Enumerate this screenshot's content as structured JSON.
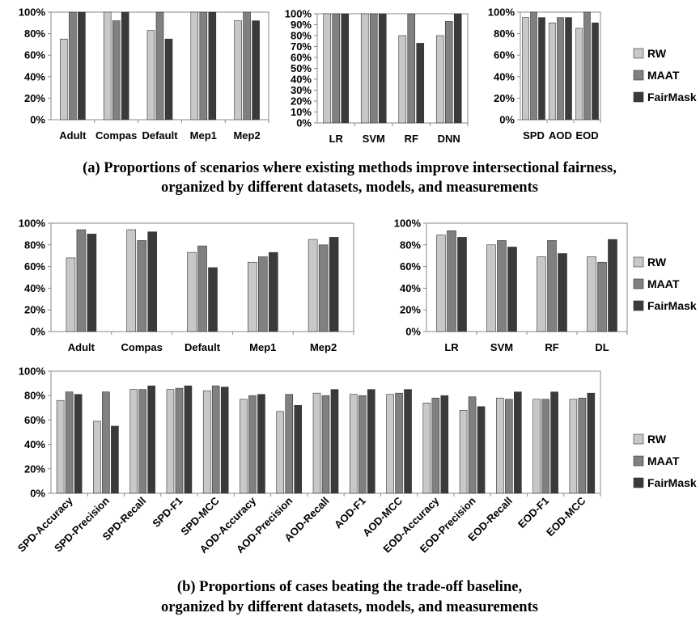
{
  "colors": {
    "RW": "#c8c8c8",
    "MAAT": "#808080",
    "FairMask": "#3a3a3a"
  },
  "legend": [
    "RW",
    "MAAT",
    "FairMask"
  ],
  "captions": {
    "a_line1": "(a) Proportions of scenarios where existing methods improve intersectional fairness,",
    "a_line2": "organized by different datasets, models, and measurements",
    "b_line1": "(b) Proportions of cases beating the trade-off baseline,",
    "b_line2": "organized by different datasets, models, and measurements"
  },
  "chart_data": [
    {
      "id": "a_datasets",
      "type": "bar",
      "categories": [
        "Adult",
        "Compas",
        "Default",
        "Mep1",
        "Mep2"
      ],
      "series": [
        {
          "name": "RW",
          "values": [
            75,
            100,
            83,
            100,
            92
          ]
        },
        {
          "name": "MAAT",
          "values": [
            100,
            92,
            100,
            100,
            100
          ]
        },
        {
          "name": "FairMask",
          "values": [
            100,
            100,
            75,
            100,
            92
          ]
        }
      ],
      "yticks": [
        "0%",
        "20%",
        "40%",
        "60%",
        "80%",
        "100%"
      ],
      "ylim": [
        0,
        100
      ]
    },
    {
      "id": "a_models",
      "type": "bar",
      "categories": [
        "LR",
        "SVM",
        "RF",
        "DNN"
      ],
      "series": [
        {
          "name": "RW",
          "values": [
            100,
            100,
            80,
            80
          ]
        },
        {
          "name": "MAAT",
          "values": [
            100,
            100,
            100,
            93
          ]
        },
        {
          "name": "FairMask",
          "values": [
            100,
            100,
            73,
            100
          ]
        }
      ],
      "yticks": [
        "0%",
        "10%",
        "20%",
        "30%",
        "40%",
        "50%",
        "60%",
        "70%",
        "80%",
        "90%",
        "100%"
      ],
      "ylim": [
        0,
        100
      ]
    },
    {
      "id": "a_measurements",
      "type": "bar",
      "categories": [
        "SPD",
        "AOD",
        "EOD"
      ],
      "series": [
        {
          "name": "RW",
          "values": [
            95,
            90,
            85
          ]
        },
        {
          "name": "MAAT",
          "values": [
            100,
            95,
            100
          ]
        },
        {
          "name": "FairMask",
          "values": [
            95,
            95,
            90
          ]
        }
      ],
      "yticks": [
        "0%",
        "20%",
        "40%",
        "60%",
        "80%",
        "100%"
      ],
      "ylim": [
        0,
        100
      ]
    },
    {
      "id": "b_datasets",
      "type": "bar",
      "categories": [
        "Adult",
        "Compas",
        "Default",
        "Mep1",
        "Mep2"
      ],
      "series": [
        {
          "name": "RW",
          "values": [
            68,
            94,
            73,
            64,
            85
          ]
        },
        {
          "name": "MAAT",
          "values": [
            94,
            84,
            79,
            69,
            80
          ]
        },
        {
          "name": "FairMask",
          "values": [
            90,
            92,
            59,
            73,
            87
          ]
        }
      ],
      "yticks": [
        "0%",
        "20%",
        "40%",
        "60%",
        "80%",
        "100%"
      ],
      "ylim": [
        0,
        100
      ]
    },
    {
      "id": "b_models",
      "type": "bar",
      "categories": [
        "LR",
        "SVM",
        "RF",
        "DL"
      ],
      "series": [
        {
          "name": "RW",
          "values": [
            89,
            80,
            69,
            69
          ]
        },
        {
          "name": "MAAT",
          "values": [
            93,
            84,
            84,
            64
          ]
        },
        {
          "name": "FairMask",
          "values": [
            87,
            78,
            72,
            85
          ]
        }
      ],
      "yticks": [
        "0%",
        "20%",
        "40%",
        "60%",
        "80%",
        "100%"
      ],
      "ylim": [
        0,
        100
      ]
    },
    {
      "id": "b_measurements",
      "type": "bar",
      "categories": [
        "SPD-Accuracy",
        "SPD-Precision",
        "SPD-Recall",
        "SPD-F1",
        "SPD-MCC",
        "AOD-Accuracy",
        "AOD-Precision",
        "AOD-Recall",
        "AOD-F1",
        "AOD-MCC",
        "EOD-Accuracy",
        "EOD-Precision",
        "EOD-Recall",
        "EOD-F1",
        "EOD-MCC"
      ],
      "series": [
        {
          "name": "RW",
          "values": [
            76,
            59,
            85,
            85,
            84,
            77,
            67,
            82,
            81,
            81,
            74,
            68,
            78,
            77,
            77
          ]
        },
        {
          "name": "MAAT",
          "values": [
            83,
            83,
            85,
            86,
            88,
            80,
            81,
            80,
            80,
            82,
            78,
            79,
            77,
            77,
            78
          ]
        },
        {
          "name": "FairMask",
          "values": [
            81,
            55,
            88,
            88,
            87,
            81,
            72,
            85,
            85,
            85,
            80,
            71,
            83,
            83,
            82
          ]
        }
      ],
      "yticks": [
        "0%",
        "20%",
        "40%",
        "60%",
        "80%",
        "100%"
      ],
      "ylim": [
        0,
        100
      ]
    }
  ]
}
